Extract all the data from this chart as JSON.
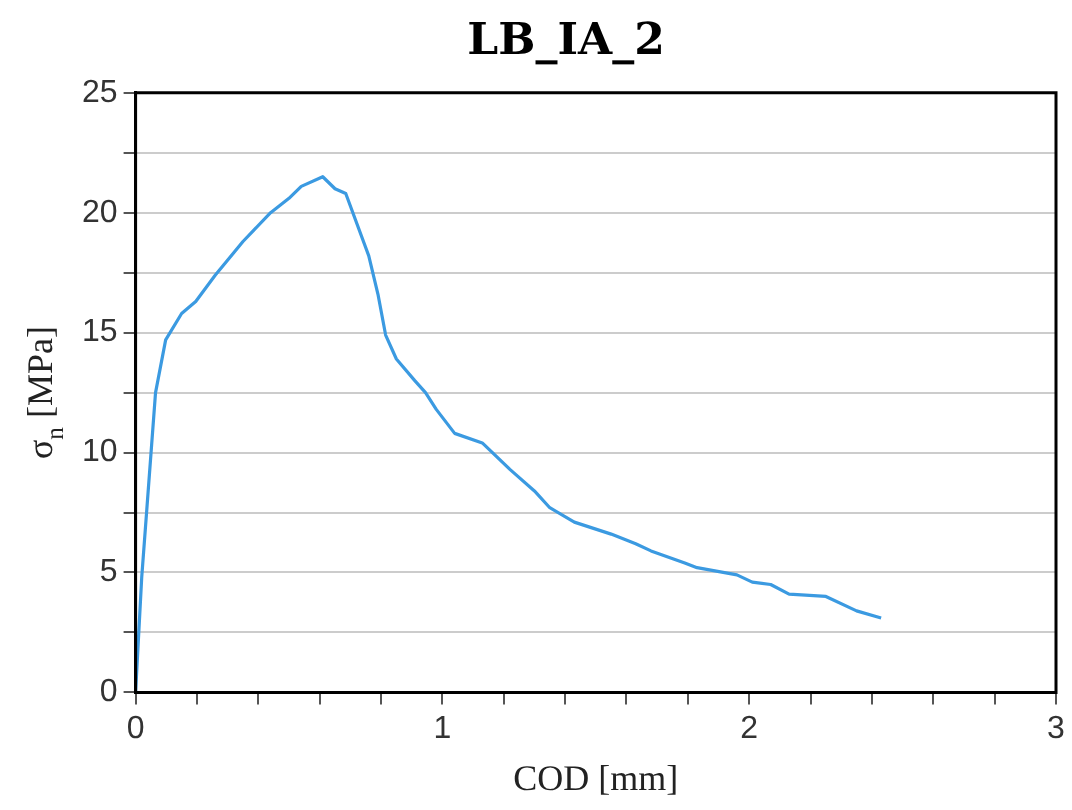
{
  "chart_data": {
    "type": "line",
    "title": "LB_IA_2",
    "xlabel": "COD [mm]",
    "ylabel": "σ$_{n}$ [MPa]",
    "x": [
      0,
      0.02,
      0.065,
      0.098,
      0.15,
      0.196,
      0.26,
      0.35,
      0.44,
      0.5,
      0.54,
      0.61,
      0.65,
      0.685,
      0.76,
      0.79,
      0.815,
      0.85,
      0.91,
      0.945,
      0.98,
      1.04,
      1.13,
      1.22,
      1.3,
      1.35,
      1.43,
      1.55,
      1.63,
      1.68,
      1.79,
      1.83,
      1.96,
      2.01,
      2.07,
      2.13,
      2.25,
      2.35,
      2.43
    ],
    "series": [
      {
        "color": "#3b9ae1",
        "values": [
          0,
          4.8,
          12.5,
          14.7,
          15.8,
          16.3,
          17.4,
          18.8,
          20.0,
          20.6,
          21.1,
          21.5,
          21.0,
          20.8,
          18.2,
          16.6,
          14.9,
          13.9,
          13.0,
          12.5,
          11.8,
          10.8,
          10.4,
          9.3,
          8.4,
          7.7,
          7.1,
          6.6,
          6.2,
          5.9,
          5.4,
          5.2,
          4.9,
          4.6,
          4.5,
          4.1,
          4.0,
          3.4,
          3.1
        ]
      }
    ],
    "xlim": [
      0,
      3
    ],
    "xticks": [
      0,
      {
        "value": 0.2,
        "label": null
      },
      {
        "value": 0.4,
        "label": null
      },
      {
        "value": 0.6,
        "label": null
      },
      {
        "value": 0.8,
        "label": null
      },
      1,
      {
        "value": 1.2,
        "label": null
      },
      {
        "value": 1.4,
        "label": null
      },
      {
        "value": 1.6,
        "label": null
      },
      {
        "value": 1.8,
        "label": null
      },
      2,
      {
        "value": 2.2,
        "label": null
      },
      {
        "value": 2.4,
        "label": null
      },
      {
        "value": 2.6,
        "label": null
      },
      {
        "value": 2.8,
        "label": null
      },
      3
    ],
    "ylim": [
      0,
      25
    ],
    "yticks": [
      0,
      {
        "value": 2.5,
        "label": null
      },
      5,
      {
        "value": 7.5,
        "label": null
      },
      10,
      {
        "value": 12.5,
        "label": null
      },
      15,
      {
        "value": 17.5,
        "label": null
      },
      20,
      {
        "value": 22.5,
        "label": null
      },
      25
    ],
    "grid": "y",
    "legend": false,
    "marker": "none",
    "line_style": "solid"
  }
}
